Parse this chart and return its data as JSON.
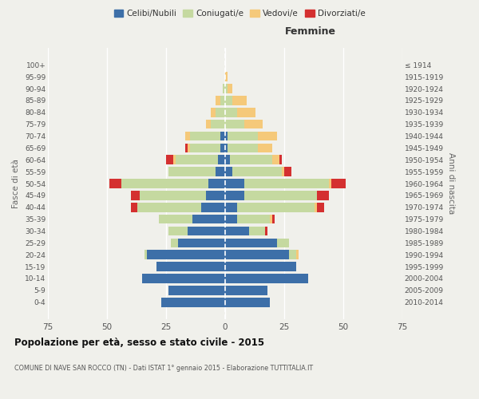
{
  "age_groups": [
    "0-4",
    "5-9",
    "10-14",
    "15-19",
    "20-24",
    "25-29",
    "30-34",
    "35-39",
    "40-44",
    "45-49",
    "50-54",
    "55-59",
    "60-64",
    "65-69",
    "70-74",
    "75-79",
    "80-84",
    "85-89",
    "90-94",
    "95-99",
    "100+"
  ],
  "birth_years": [
    "2010-2014",
    "2005-2009",
    "2000-2004",
    "1995-1999",
    "1990-1994",
    "1985-1989",
    "1980-1984",
    "1975-1979",
    "1970-1974",
    "1965-1969",
    "1960-1964",
    "1955-1959",
    "1950-1954",
    "1945-1949",
    "1940-1944",
    "1935-1939",
    "1930-1934",
    "1925-1929",
    "1920-1924",
    "1915-1919",
    "≤ 1914"
  ],
  "colors": {
    "celibi": "#3d6fa8",
    "coniugati": "#c5d9a0",
    "vedovi": "#f5c97a",
    "divorziati": "#d43030"
  },
  "male": {
    "celibi": [
      27,
      24,
      35,
      29,
      33,
      20,
      16,
      14,
      10,
      8,
      7,
      4,
      3,
      2,
      2,
      0,
      0,
      0,
      0,
      0,
      0
    ],
    "coniugati": [
      0,
      0,
      0,
      0,
      1,
      3,
      8,
      14,
      27,
      28,
      37,
      20,
      18,
      13,
      13,
      6,
      4,
      2,
      1,
      0,
      0
    ],
    "vedovi": [
      0,
      0,
      0,
      0,
      0,
      0,
      0,
      0,
      0,
      0,
      0,
      0,
      1,
      1,
      2,
      2,
      2,
      2,
      0,
      0,
      0
    ],
    "divorziati": [
      0,
      0,
      0,
      0,
      0,
      0,
      0,
      0,
      3,
      4,
      5,
      0,
      3,
      1,
      0,
      0,
      0,
      0,
      0,
      0,
      0
    ]
  },
  "female": {
    "celibi": [
      19,
      18,
      35,
      30,
      27,
      22,
      10,
      5,
      5,
      8,
      8,
      3,
      2,
      1,
      1,
      0,
      0,
      0,
      0,
      0,
      0
    ],
    "coniugati": [
      0,
      0,
      0,
      0,
      3,
      5,
      7,
      14,
      33,
      31,
      36,
      21,
      18,
      13,
      13,
      8,
      5,
      3,
      1,
      0,
      0
    ],
    "vedovi": [
      0,
      0,
      0,
      0,
      1,
      0,
      0,
      1,
      1,
      0,
      1,
      1,
      3,
      6,
      8,
      8,
      8,
      6,
      2,
      1,
      0
    ],
    "divorziati": [
      0,
      0,
      0,
      0,
      0,
      0,
      1,
      1,
      3,
      5,
      6,
      3,
      1,
      0,
      0,
      0,
      0,
      0,
      0,
      0,
      0
    ]
  },
  "xlim": 75,
  "title": "Popolazione per età, sesso e stato civile - 2015",
  "subtitle": "COMUNE DI NAVE SAN ROCCO (TN) - Dati ISTAT 1° gennaio 2015 - Elaborazione TUTTITALIA.IT",
  "ylabel_left": "Fasce di età",
  "ylabel_right": "Anni di nascita",
  "xlabel_right": "Femmine",
  "legend_labels": [
    "Celibi/Nubili",
    "Coniugati/e",
    "Vedovi/e",
    "Divorziati/e"
  ],
  "bg_color": "#f0f0eb"
}
